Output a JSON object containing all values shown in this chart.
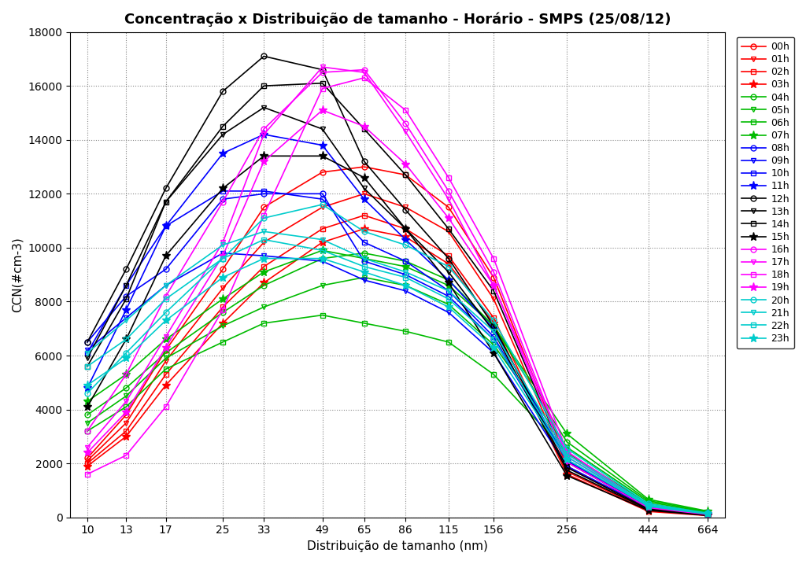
{
  "title": "Concentração x Distribuição de tamanho - Horário - SMPS (25/08/12)",
  "xlabel": "Distribuição de tamanho (nm)",
  "ylabel": "CCN(#cm-3)",
  "x_ticks": [
    10,
    13,
    17,
    25,
    33,
    49,
    65,
    86,
    115,
    156,
    256,
    444,
    664
  ],
  "ylim": [
    0,
    18000
  ],
  "yticks": [
    0,
    2000,
    4000,
    6000,
    8000,
    10000,
    12000,
    14000,
    16000,
    18000
  ],
  "hours": [
    {
      "label": "00h",
      "color": "#FF0000",
      "marker": "o"
    },
    {
      "label": "01h",
      "color": "#FF0000",
      "marker": "v"
    },
    {
      "label": "02h",
      "color": "#FF0000",
      "marker": "s"
    },
    {
      "label": "03h",
      "color": "#FF0000",
      "marker": "*"
    },
    {
      "label": "04h",
      "color": "#00BB00",
      "marker": "o"
    },
    {
      "label": "05h",
      "color": "#00BB00",
      "marker": "v"
    },
    {
      "label": "06h",
      "color": "#00BB00",
      "marker": "s"
    },
    {
      "label": "07h",
      "color": "#00BB00",
      "marker": "*"
    },
    {
      "label": "08h",
      "color": "#0000FF",
      "marker": "o"
    },
    {
      "label": "09h",
      "color": "#0000FF",
      "marker": "v"
    },
    {
      "label": "10h",
      "color": "#0000FF",
      "marker": "s"
    },
    {
      "label": "11h",
      "color": "#0000FF",
      "marker": "*"
    },
    {
      "label": "12h",
      "color": "#000000",
      "marker": "o"
    },
    {
      "label": "13h",
      "color": "#000000",
      "marker": "v"
    },
    {
      "label": "14h",
      "color": "#000000",
      "marker": "s"
    },
    {
      "label": "15h",
      "color": "#000000",
      "marker": "*"
    },
    {
      "label": "16h",
      "color": "#FF00FF",
      "marker": "o"
    },
    {
      "label": "17h",
      "color": "#FF00FF",
      "marker": "v"
    },
    {
      "label": "18h",
      "color": "#FF00FF",
      "marker": "s"
    },
    {
      "label": "19h",
      "color": "#FF00FF",
      "marker": "*"
    },
    {
      "label": "20h",
      "color": "#00CCCC",
      "marker": "o"
    },
    {
      "label": "21h",
      "color": "#00CCCC",
      "marker": "v"
    },
    {
      "label": "22h",
      "color": "#00CCCC",
      "marker": "s"
    },
    {
      "label": "23h",
      "color": "#00CCCC",
      "marker": "*"
    }
  ],
  "data": {
    "00h": [
      2200,
      3800,
      6200,
      9200,
      11500,
      12800,
      13000,
      12700,
      11500,
      8900,
      2100,
      350,
      100
    ],
    "01h": [
      2100,
      3500,
      5800,
      8500,
      10200,
      11500,
      12000,
      11500,
      10600,
      8100,
      1900,
      300,
      85
    ],
    "02h": [
      2000,
      3200,
      5300,
      7800,
      9300,
      10700,
      11200,
      10700,
      9700,
      7400,
      1700,
      250,
      75
    ],
    "03h": [
      1900,
      3000,
      4900,
      7200,
      8700,
      10200,
      10700,
      10400,
      9400,
      7200,
      1600,
      220,
      65
    ],
    "04h": [
      3800,
      4800,
      6100,
      7600,
      8600,
      9600,
      9800,
      9500,
      8800,
      7100,
      2800,
      620,
      210
    ],
    "05h": [
      3500,
      4500,
      5900,
      7100,
      7800,
      8600,
      8900,
      8600,
      7900,
      6400,
      2600,
      570,
      190
    ],
    "06h": [
      3200,
      4100,
      5500,
      6500,
      7200,
      7500,
      7200,
      6900,
      6500,
      5300,
      2400,
      510,
      170
    ],
    "07h": [
      4300,
      5300,
      6600,
      8100,
      9100,
      9900,
      9600,
      9300,
      8600,
      7100,
      3100,
      670,
      230
    ],
    "08h": [
      6500,
      8200,
      9200,
      11800,
      12000,
      12000,
      9500,
      9000,
      8200,
      6600,
      2100,
      380,
      110
    ],
    "09h": [
      6200,
      7400,
      8600,
      9800,
      9700,
      9500,
      8800,
      8400,
      7600,
      6100,
      1900,
      360,
      105
    ],
    "10h": [
      6100,
      8600,
      10800,
      12100,
      12100,
      11800,
      10200,
      9500,
      8400,
      6700,
      2100,
      410,
      135
    ],
    "11h": [
      4800,
      7700,
      10800,
      13500,
      14200,
      13800,
      11800,
      10300,
      8800,
      7000,
      2100,
      370,
      105
    ],
    "12h": [
      6500,
      9200,
      12200,
      15800,
      17100,
      16600,
      13200,
      11400,
      9600,
      7100,
      1850,
      310,
      85
    ],
    "13h": [
      5900,
      8600,
      11700,
      14200,
      15200,
      14400,
      12200,
      10700,
      9100,
      6900,
      1750,
      290,
      80
    ],
    "14h": [
      5600,
      8100,
      11700,
      14500,
      16000,
      16100,
      14400,
      12700,
      10700,
      8400,
      2050,
      360,
      95
    ],
    "15h": [
      4100,
      6600,
      9700,
      12200,
      13400,
      13400,
      12600,
      10700,
      8700,
      6100,
      1550,
      260,
      75
    ],
    "16h": [
      3200,
      5300,
      8200,
      11700,
      14400,
      16500,
      16600,
      14600,
      12100,
      9100,
      2250,
      410,
      125
    ],
    "17h": [
      2600,
      4300,
      6700,
      10200,
      14200,
      16700,
      16500,
      14300,
      11800,
      8600,
      2050,
      360,
      105
    ],
    "18h": [
      1600,
      2300,
      4100,
      7700,
      11200,
      15900,
      16300,
      15100,
      12600,
      9600,
      2450,
      430,
      135
    ],
    "19h": [
      2400,
      3900,
      6300,
      9700,
      13200,
      15100,
      14500,
      13100,
      11100,
      8600,
      2350,
      410,
      125
    ],
    "20h": [
      4600,
      6100,
      7600,
      9600,
      11100,
      11600,
      10600,
      10100,
      9300,
      7300,
      2550,
      510,
      155
    ],
    "21h": [
      6100,
      7300,
      8600,
      10100,
      10600,
      10300,
      9600,
      9100,
      8400,
      6900,
      2350,
      460,
      145
    ],
    "22h": [
      5600,
      6600,
      8100,
      9600,
      10300,
      9900,
      9300,
      8900,
      8100,
      6600,
      2250,
      430,
      135
    ],
    "23h": [
      4900,
      5900,
      7300,
      8900,
      9600,
      9600,
      9100,
      8600,
      7800,
      6300,
      2150,
      410,
      125
    ]
  }
}
